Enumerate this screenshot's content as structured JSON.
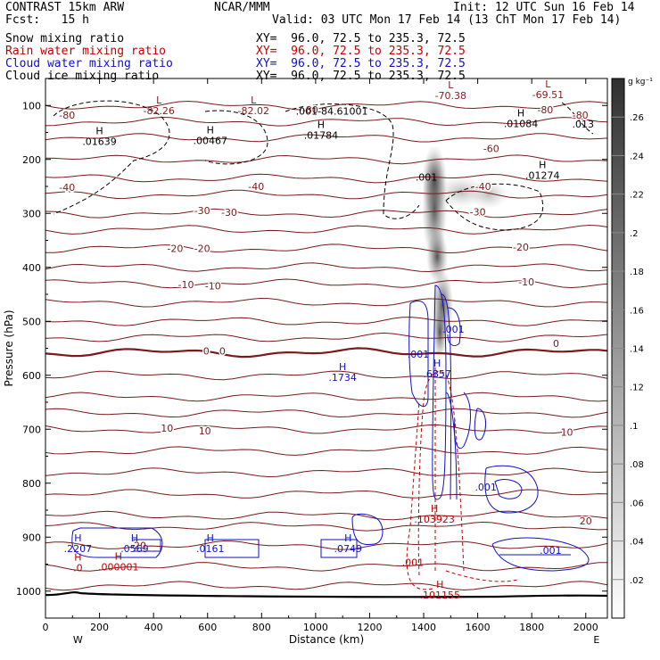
{
  "header": {
    "left1": "CONTRAST 15km ARW",
    "center1": "NCAR/MMM",
    "right1": "Init: 12 UTC Sun 16 Feb 14",
    "left2": "Fcst:   15 h",
    "right2": "Valid: 03 UTC Mon 17 Feb 14 (13 ChT Mon 17 Feb 14)",
    "fields": [
      {
        "name": "Snow mixing ratio",
        "xy": "XY=  96.0, 72.5 to 235.3, 72.5",
        "color": "#000000"
      },
      {
        "name": "Rain water mixing ratio",
        "xy": "XY=  96.0, 72.5 to 235.3, 72.5",
        "color": "#c00000"
      },
      {
        "name": "Cloud water mixing ratio",
        "xy": "XY=  96.0, 72.5 to 235.3, 72.5",
        "color": "#1010c8"
      },
      {
        "name": "Cloud ice mixing ratio",
        "xy": "XY=  96.0, 72.5 to 235.3, 72.5",
        "color": "#000000"
      }
    ]
  },
  "chart_data": {
    "type": "cross-section",
    "xlabel": "Distance (km)",
    "ylabel": "Pressure (hPa)",
    "xlim": [
      0,
      2080
    ],
    "ylim": [
      1050,
      50
    ],
    "x_ticks": [
      0,
      200,
      400,
      600,
      800,
      1000,
      1200,
      1400,
      1600,
      1800,
      2000
    ],
    "y_ticks": [
      100,
      200,
      300,
      400,
      500,
      600,
      700,
      800,
      900,
      1000
    ],
    "end_labels": {
      "left": "W",
      "right": "E"
    },
    "colorbar": {
      "unit": "g kg⁻¹",
      "ticks": [
        ".26",
        ".24",
        ".22",
        ".2",
        ".18",
        ".16",
        ".14",
        ".12",
        ".1",
        ".08",
        ".06",
        ".04",
        ".02"
      ],
      "tick_values": [
        0.26,
        0.24,
        0.22,
        0.2,
        0.18,
        0.16,
        0.14,
        0.12,
        0.1,
        0.08,
        0.06,
        0.04,
        0.02
      ],
      "range": [
        0,
        0.28
      ]
    },
    "temperature_labels": [
      {
        "x": 80,
        "p": 118,
        "text": "-80"
      },
      {
        "x": 980,
        "p": 108,
        "text": "-80"
      },
      {
        "x": 1850,
        "p": 108,
        "text": "-80"
      },
      {
        "x": 1980,
        "p": 118,
        "text": "-80"
      },
      {
        "x": 1650,
        "p": 180,
        "text": "-60"
      },
      {
        "x": 80,
        "p": 252,
        "text": "-40"
      },
      {
        "x": 780,
        "p": 250,
        "text": "-40"
      },
      {
        "x": 1620,
        "p": 250,
        "text": "-40"
      },
      {
        "x": 580,
        "p": 295,
        "text": "-30"
      },
      {
        "x": 680,
        "p": 298,
        "text": "-30"
      },
      {
        "x": 1600,
        "p": 297,
        "text": "-30"
      },
      {
        "x": 480,
        "p": 365,
        "text": "-20"
      },
      {
        "x": 580,
        "p": 365,
        "text": "-20"
      },
      {
        "x": 1760,
        "p": 362,
        "text": "-20"
      },
      {
        "x": 520,
        "p": 432,
        "text": "-10"
      },
      {
        "x": 620,
        "p": 434,
        "text": "-10"
      },
      {
        "x": 1780,
        "p": 427,
        "text": "-10"
      },
      {
        "x": 595,
        "p": 555,
        "text": "0"
      },
      {
        "x": 655,
        "p": 555,
        "text": "0"
      },
      {
        "x": 1890,
        "p": 541,
        "text": "0"
      },
      {
        "x": 450,
        "p": 698,
        "text": "10"
      },
      {
        "x": 590,
        "p": 703,
        "text": "10"
      },
      {
        "x": 1930,
        "p": 705,
        "text": "10"
      },
      {
        "x": 2000,
        "p": 870,
        "text": "20"
      },
      {
        "x": 350,
        "p": 915,
        "text": "20"
      }
    ],
    "extrema_labels": [
      {
        "x": 420,
        "p": 113,
        "mark": "L",
        "value": "-82.26",
        "color": "#8b1a1a"
      },
      {
        "x": 770,
        "p": 113,
        "mark": "L",
        "value": "-82.02",
        "color": "#8b1a1a"
      },
      {
        "x": 1060,
        "p": 114,
        "mark": "",
        "value": ".001-84.61001",
        "color": "#000000"
      },
      {
        "x": 1500,
        "p": 85,
        "mark": "L",
        "value": "-70.38",
        "color": "#8b1a1a"
      },
      {
        "x": 1860,
        "p": 83,
        "mark": "L",
        "value": "-69.51",
        "color": "#8b1a1a"
      },
      {
        "x": 200,
        "p": 170,
        "mark": "H",
        "value": ".01639",
        "color": "#000000"
      },
      {
        "x": 610,
        "p": 168,
        "mark": "H",
        "value": ".00467",
        "color": "#000000"
      },
      {
        "x": 1020,
        "p": 158,
        "mark": "H",
        "value": ".01784",
        "color": "#000000"
      },
      {
        "x": 1760,
        "p": 137,
        "mark": "H",
        "value": ".01084",
        "color": "#000000"
      },
      {
        "x": 1990,
        "p": 138,
        "mark": "",
        "value": ".013",
        "color": "#000000"
      },
      {
        "x": 1840,
        "p": 233,
        "mark": "H",
        "value": ".01274",
        "color": "#000000"
      },
      {
        "x": 1410,
        "p": 236,
        "mark": "",
        "value": ".001",
        "color": "#000000"
      },
      {
        "x": 1100,
        "p": 607,
        "mark": "H",
        "value": ".1734",
        "color": "#1010c8"
      },
      {
        "x": 1450,
        "p": 600,
        "mark": "H",
        "value": ".6857",
        "color": "#1010c8"
      },
      {
        "x": 1380,
        "p": 564,
        "mark": "",
        "value": ".001",
        "color": "#1010c8"
      },
      {
        "x": 1510,
        "p": 518,
        "mark": "",
        "value": ".001",
        "color": "#1010c8"
      },
      {
        "x": 1630,
        "p": 810,
        "mark": "",
        "value": ".001",
        "color": "#1010c8"
      },
      {
        "x": 1870,
        "p": 928,
        "mark": "",
        "value": ".001",
        "color": "#1010c8"
      },
      {
        "x": 120,
        "p": 924,
        "mark": "H",
        "value": ".2207",
        "color": "#1010c8"
      },
      {
        "x": 330,
        "p": 924,
        "mark": "H",
        "value": ".0569",
        "color": "#1010c8"
      },
      {
        "x": 610,
        "p": 924,
        "mark": "H",
        "value": ".0161",
        "color": "#1010c8"
      },
      {
        "x": 1120,
        "p": 924,
        "mark": "H",
        "value": ".0749",
        "color": "#1010c8"
      },
      {
        "x": 1440,
        "p": 870,
        "mark": "H",
        "value": ".103923",
        "color": "#c00000"
      },
      {
        "x": 1360,
        "p": 950,
        "mark": "",
        "value": ".001",
        "color": "#c00000"
      },
      {
        "x": 1460,
        "p": 1010,
        "mark": "H",
        "value": ".101155",
        "color": "#c00000"
      },
      {
        "x": 270,
        "p": 958,
        "mark": "H",
        "value": ".000001",
        "color": "#c00000"
      },
      {
        "x": 120,
        "p": 960,
        "mark": "H",
        "value": ".0",
        "color": "#c00000"
      }
    ],
    "dash_labels": [
      ".001",
      ".001",
      ".001"
    ]
  }
}
